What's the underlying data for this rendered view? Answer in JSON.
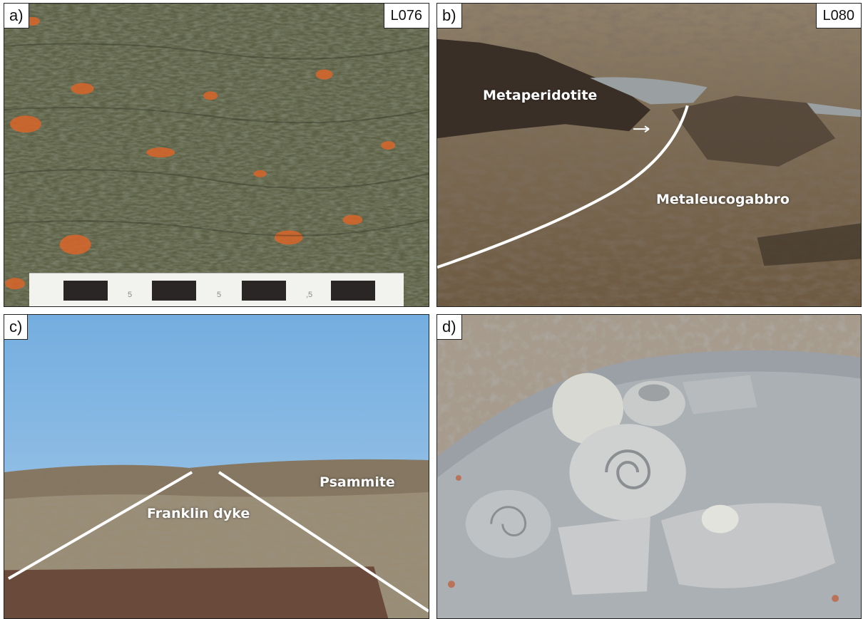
{
  "panels": {
    "a": {
      "label": "a)",
      "site": "L076"
    },
    "b": {
      "label": "b)",
      "site": "L080",
      "annotations": {
        "upper": "Metaperidotite",
        "lower": "Metaleucogabbro"
      }
    },
    "c": {
      "label": "c)",
      "annotations": {
        "dyke": "Franklin dyke",
        "host": "Psammite"
      }
    },
    "d": {
      "label": "d)"
    }
  },
  "scale": {
    "ticks": [
      "5",
      "5",
      ",5"
    ]
  },
  "colors": {
    "foliated_rock": "#4a5036",
    "orange_lichen": "#d9652a",
    "tundra": "#8a7556",
    "sky": "#8ab8e0",
    "fossil_rock": "#c4c6c8"
  }
}
